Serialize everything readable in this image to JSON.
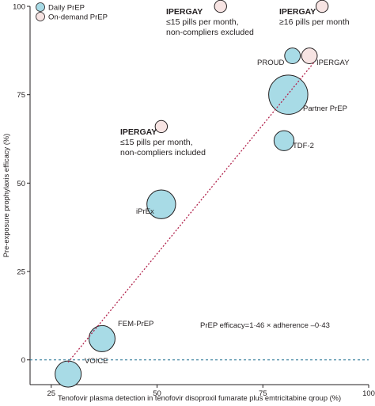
{
  "chart_data": {
    "type": "scatter",
    "xlabel": "Tenofovir plasma detection in tenofovir disoproxil fumarate plus emtricitabine qroup (%)",
    "ylabel": "Pre-exposure prophylaxis efficacy (%)",
    "xlim": [
      20,
      100
    ],
    "ylim": [
      -7,
      100
    ],
    "x_ticks": [
      25,
      50,
      75,
      100
    ],
    "y_ticks": [
      0,
      25,
      50,
      75,
      100
    ],
    "legend": {
      "placement": "top-left",
      "entries": [
        {
          "label": "Daily PrEP",
          "color": "#a8dbe6"
        },
        {
          "label": "On-demand PrEP",
          "color": "#f7e4e3"
        }
      ]
    },
    "series": [
      {
        "name": "Daily PrEP",
        "color": "#a8dbe6",
        "points": [
          {
            "label": "VOICE",
            "x": 29,
            "y": -4,
            "size": 3.0
          },
          {
            "label": "FEM-PrEP",
            "x": 37,
            "y": 6,
            "size": 3.0
          },
          {
            "label": "iPrEx",
            "x": 51,
            "y": 44,
            "size": 3.3
          },
          {
            "label": "TDF-2",
            "x": 80,
            "y": 62,
            "size": 2.3
          },
          {
            "label": "Partner PrEP",
            "x": 81,
            "y": 75,
            "size": 4.5
          },
          {
            "label": "PROUD",
            "x": 82,
            "y": 86,
            "size": 1.8
          }
        ]
      },
      {
        "name": "On-demand PrEP",
        "color": "#f7e4e3",
        "points": [
          {
            "label": "IPERGAY",
            "x": 86,
            "y": 86,
            "size": 1.8
          },
          {
            "label": "IPERGAY",
            "x": 51,
            "y": 66,
            "size": 1.4
          },
          {
            "label": "IPERGAY",
            "x": 65,
            "y": 100,
            "size": 1.4
          },
          {
            "label": "IPERGAY",
            "x": 89,
            "y": 100,
            "size": 1.4
          }
        ]
      }
    ],
    "annotations": [
      {
        "id": "ann1",
        "lines": [
          "IPERGAY",
          "≤15 pills per month,",
          "non-compliers excluded"
        ]
      },
      {
        "id": "ann2",
        "lines": [
          "IPERGAY",
          "≥16 pills per month"
        ]
      },
      {
        "id": "ann3",
        "lines": [
          "IPERGAY",
          "≤15 pills per month,",
          "non-compliers included"
        ]
      }
    ],
    "point_labels": [
      "PROUD",
      "IPERGAY",
      "Partner PrEP",
      "TDF-2",
      "iPrEx",
      "FEM-PrEP",
      "VOICE"
    ],
    "equation": "PrEP efficacy=1·46 × adherence –0·43",
    "fit_line": {
      "slope": 1.46,
      "intercept": -0.43,
      "x_range": [
        29,
        87
      ],
      "color": "#b2234c",
      "style": "dotted"
    },
    "reference_line": {
      "y": 0,
      "color": "#1d6e8f",
      "style": "dashed"
    },
    "grid": false
  }
}
